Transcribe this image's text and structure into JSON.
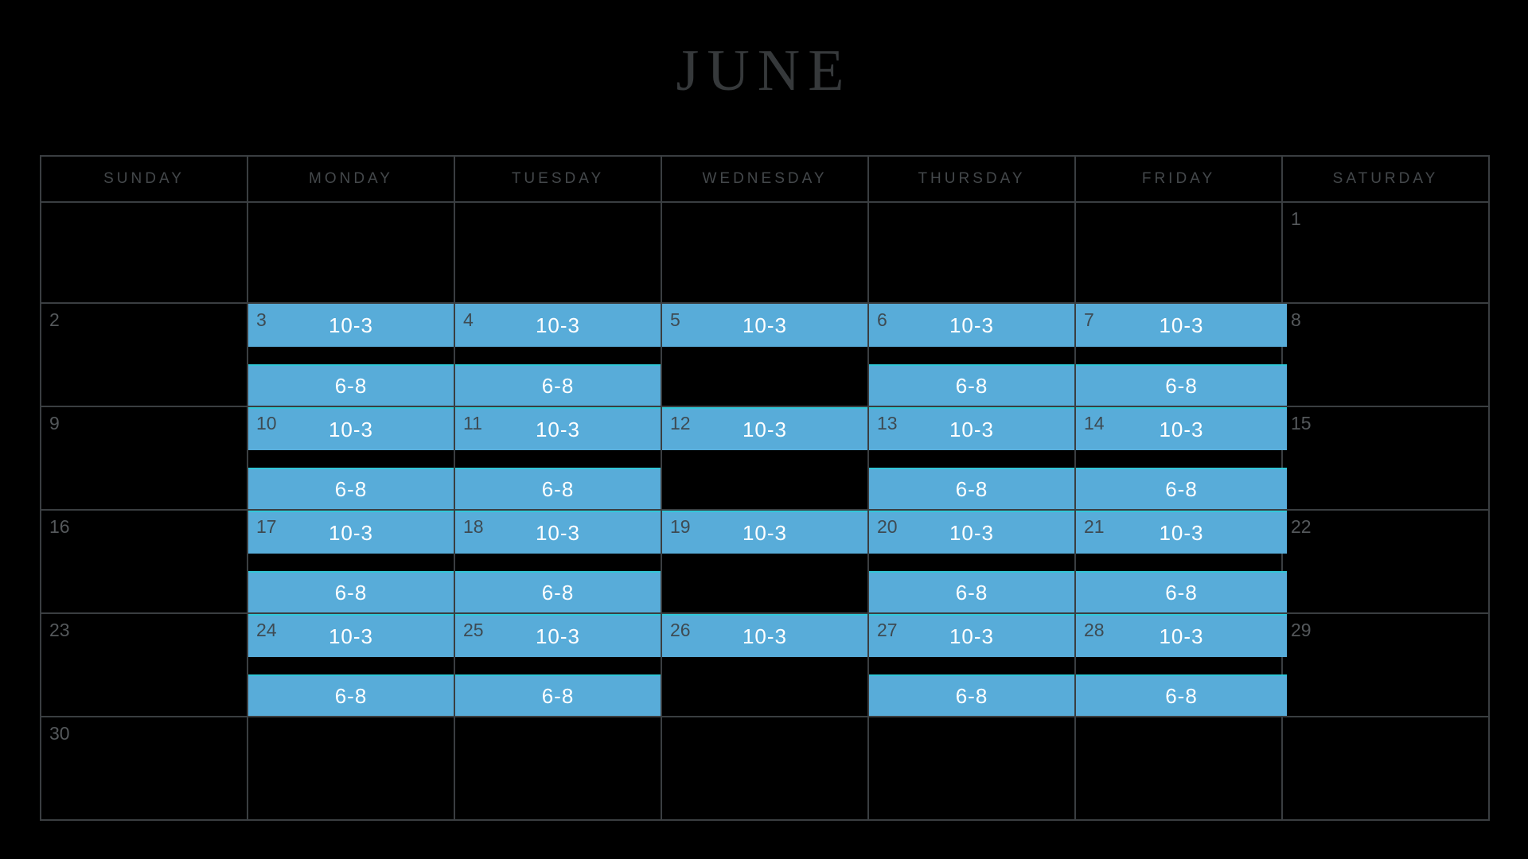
{
  "title": "JUNE",
  "weekdays": [
    "SUNDAY",
    "MONDAY",
    "TUESDAY",
    "WEDNESDAY",
    "THURSDAY",
    "FRIDAY",
    "SATURDAY"
  ],
  "colors": {
    "background": "#000000",
    "grid_border": "#3A3E41",
    "title_text": "#36393B",
    "weekday_text": "#44484B",
    "day_number": "#54585B",
    "day_number_on_event": "#3E4B53",
    "event_bar": "#58ACD9",
    "event_bar_top_edge": "#31C7D8",
    "event_text": "#FFFFFF"
  },
  "weeks": [
    [
      null,
      null,
      null,
      null,
      null,
      null,
      {
        "day": "1"
      }
    ],
    [
      {
        "day": "2"
      },
      {
        "day": "3",
        "events": [
          {
            "text": "10-3",
            "slot": "morning",
            "accent_top": false
          },
          {
            "text": "6-8",
            "slot": "evening",
            "accent_top": true
          }
        ]
      },
      {
        "day": "4",
        "events": [
          {
            "text": "10-3",
            "slot": "morning",
            "accent_top": false
          },
          {
            "text": "6-8",
            "slot": "evening",
            "accent_top": true
          }
        ]
      },
      {
        "day": "5",
        "events": [
          {
            "text": "10-3",
            "slot": "morning",
            "accent_top": false
          }
        ]
      },
      {
        "day": "6",
        "events": [
          {
            "text": "10-3",
            "slot": "morning",
            "accent_top": false
          },
          {
            "text": "6-8",
            "slot": "evening",
            "accent_top": true
          }
        ]
      },
      {
        "day": "7",
        "events": [
          {
            "text": "10-3",
            "slot": "morning",
            "accent_top": false
          },
          {
            "text": "6-8",
            "slot": "evening",
            "accent_top": true
          }
        ]
      },
      {
        "day": "8"
      }
    ],
    [
      {
        "day": "9"
      },
      {
        "day": "10",
        "events": [
          {
            "text": "10-3",
            "slot": "morning",
            "accent_top": true
          },
          {
            "text": "6-8",
            "slot": "evening",
            "accent_top": true
          }
        ]
      },
      {
        "day": "11",
        "events": [
          {
            "text": "10-3",
            "slot": "morning",
            "accent_top": true
          },
          {
            "text": "6-8",
            "slot": "evening",
            "accent_top": true
          }
        ]
      },
      {
        "day": "12",
        "events": [
          {
            "text": "10-3",
            "slot": "morning",
            "accent_top": true
          }
        ]
      },
      {
        "day": "13",
        "events": [
          {
            "text": "10-3",
            "slot": "morning",
            "accent_top": true
          },
          {
            "text": "6-8",
            "slot": "evening",
            "accent_top": true
          }
        ]
      },
      {
        "day": "14",
        "events": [
          {
            "text": "10-3",
            "slot": "morning",
            "accent_top": true
          },
          {
            "text": "6-8",
            "slot": "evening",
            "accent_top": true
          }
        ]
      },
      {
        "day": "15"
      }
    ],
    [
      {
        "day": "16"
      },
      {
        "day": "17",
        "events": [
          {
            "text": "10-3",
            "slot": "morning",
            "accent_top": true
          },
          {
            "text": "6-8",
            "slot": "evening",
            "accent_top": true
          }
        ]
      },
      {
        "day": "18",
        "events": [
          {
            "text": "10-3",
            "slot": "morning",
            "accent_top": true
          },
          {
            "text": "6-8",
            "slot": "evening",
            "accent_top": true
          }
        ]
      },
      {
        "day": "19",
        "events": [
          {
            "text": "10-3",
            "slot": "morning",
            "accent_top": true
          }
        ]
      },
      {
        "day": "20",
        "events": [
          {
            "text": "10-3",
            "slot": "morning",
            "accent_top": true
          },
          {
            "text": "6-8",
            "slot": "evening",
            "accent_top": true
          }
        ]
      },
      {
        "day": "21",
        "events": [
          {
            "text": "10-3",
            "slot": "morning",
            "accent_top": true
          },
          {
            "text": "6-8",
            "slot": "evening",
            "accent_top": true
          }
        ]
      },
      {
        "day": "22"
      }
    ],
    [
      {
        "day": "23"
      },
      {
        "day": "24",
        "events": [
          {
            "text": "10-3",
            "slot": "morning",
            "accent_top": true
          },
          {
            "text": "6-8",
            "slot": "evening",
            "accent_top": true
          }
        ]
      },
      {
        "day": "25",
        "events": [
          {
            "text": "10-3",
            "slot": "morning",
            "accent_top": true
          },
          {
            "text": "6-8",
            "slot": "evening",
            "accent_top": true
          }
        ]
      },
      {
        "day": "26",
        "events": [
          {
            "text": "10-3",
            "slot": "morning",
            "accent_top": true
          }
        ]
      },
      {
        "day": "27",
        "events": [
          {
            "text": "10-3",
            "slot": "morning",
            "accent_top": true
          },
          {
            "text": "6-8",
            "slot": "evening",
            "accent_top": true
          }
        ]
      },
      {
        "day": "28",
        "events": [
          {
            "text": "10-3",
            "slot": "morning",
            "accent_top": true
          },
          {
            "text": "6-8",
            "slot": "evening",
            "accent_top": true
          }
        ]
      },
      {
        "day": "29"
      }
    ],
    [
      {
        "day": "30"
      },
      null,
      null,
      null,
      null,
      null,
      null
    ]
  ]
}
